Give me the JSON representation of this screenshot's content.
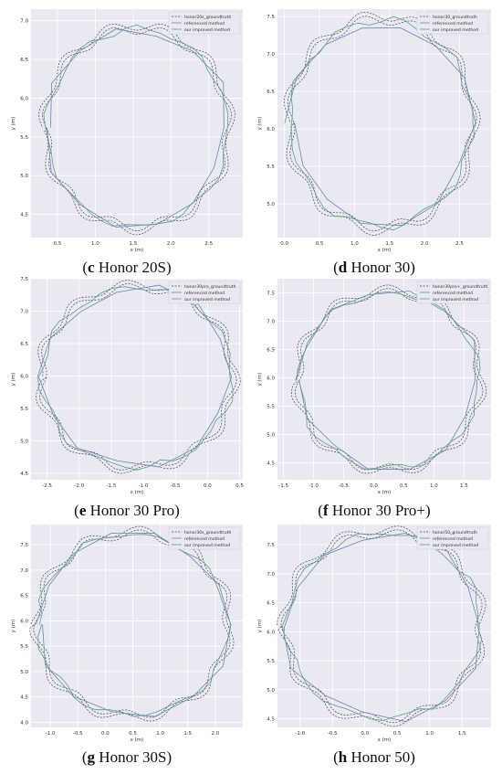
{
  "legend_labels": [
    "referenced method",
    "our improved method"
  ],
  "colors": {
    "groundtruth": "#444a55",
    "referenced": "#6f86b3",
    "improved": "#5f9e86",
    "plot_bg": "#e9e9f1",
    "grid": "#ffffff"
  },
  "chart_data": [
    {
      "type": "line",
      "caption_letter": "c",
      "caption_text": " Honor 20S",
      "xlabel": "x (m)",
      "ylabel": "y (m)",
      "xticks": [
        "0.5",
        "1.0",
        "1.5",
        "2.0",
        "2.5"
      ],
      "yticks": [
        "4.5",
        "5.0",
        "5.5",
        "6.0",
        "6.5",
        "7.0"
      ],
      "xlim": [
        0.15,
        2.95
      ],
      "ylim": [
        4.2,
        7.15
      ],
      "center": [
        1.55,
        5.62
      ],
      "radius": [
        1.2,
        1.27
      ],
      "series": [
        {
          "name": "honor20s_groundtruth"
        },
        {
          "name": "referenced method"
        },
        {
          "name": "our improved method"
        }
      ],
      "legend_position": "top-right"
    },
    {
      "type": "line",
      "caption_letter": "d",
      "caption_text": " Honor 30",
      "xlabel": "x (m)",
      "ylabel": "y (m)",
      "xticks": [
        "0.0",
        "0.5",
        "1.0",
        "1.5",
        "2.0",
        "2.5"
      ],
      "yticks": [
        "5.0",
        "5.5",
        "6.0",
        "6.5",
        "7.0",
        "7.5"
      ],
      "xlim": [
        -0.1,
        2.95
      ],
      "ylim": [
        4.55,
        7.6
      ],
      "center": [
        1.38,
        6.08
      ],
      "radius": [
        1.3,
        1.38
      ],
      "series": [
        {
          "name": "honor30_groundtruth"
        },
        {
          "name": "referenced method"
        },
        {
          "name": "our improved method"
        }
      ],
      "legend_position": "top-right"
    },
    {
      "type": "line",
      "caption_letter": "e",
      "caption_text": " Honor 30 Pro",
      "xlabel": "x (m)",
      "ylabel": "y (m)",
      "xticks": [
        "-2.5",
        "-2.0",
        "-1.5",
        "-1.0",
        "-0.5",
        "0.0",
        "0.5"
      ],
      "yticks": [
        "4.5",
        "5.0",
        "5.5",
        "6.0",
        "6.5",
        "7.0",
        "7.5"
      ],
      "xlim": [
        -2.75,
        0.55
      ],
      "ylim": [
        4.4,
        7.5
      ],
      "center": [
        -1.1,
        5.98
      ],
      "radius": [
        1.48,
        1.38
      ],
      "series": [
        {
          "name": "honor30pro_groundtruth"
        },
        {
          "name": "referenced method"
        },
        {
          "name": "our improved method"
        }
      ],
      "legend_position": "top-right"
    },
    {
      "type": "line",
      "caption_letter": "f",
      "caption_text": " Honor 30 Pro+",
      "xlabel": "x (m)",
      "ylabel": "y (m)",
      "xticks": [
        "-1.5",
        "-1.0",
        "-0.5",
        "0.0",
        "0.5",
        "1.0",
        "1.5"
      ],
      "yticks": [
        "4.5",
        "5.0",
        "5.5",
        "6.0",
        "6.5",
        "7.0",
        "7.5"
      ],
      "xlim": [
        -1.6,
        1.95
      ],
      "ylim": [
        4.2,
        7.75
      ],
      "center": [
        0.25,
        5.95
      ],
      "radius": [
        1.5,
        1.55
      ],
      "series": [
        {
          "name": "honor30pro+_groundtruth"
        },
        {
          "name": "referenced method"
        },
        {
          "name": "our improved method"
        }
      ],
      "legend_position": "top-right"
    },
    {
      "type": "line",
      "caption_letter": "g",
      "caption_text": " Honor 30S",
      "xlabel": "x (m)",
      "ylabel": "y (m)",
      "xticks": [
        "-1.0",
        "-0.5",
        "0.0",
        "0.5",
        "1.0",
        "1.5",
        "2.0"
      ],
      "yticks": [
        "4.0",
        "4.5",
        "5.0",
        "5.5",
        "6.0",
        "6.5",
        "7.0",
        "7.5"
      ],
      "xlim": [
        -1.35,
        2.5
      ],
      "ylim": [
        3.9,
        7.9
      ],
      "center": [
        0.5,
        5.93
      ],
      "radius": [
        1.72,
        1.78
      ],
      "series": [
        {
          "name": "honor30s_groundtruth"
        },
        {
          "name": "referenced method"
        },
        {
          "name": "our improved method"
        }
      ],
      "legend_position": "top-right"
    },
    {
      "type": "line",
      "caption_letter": "h",
      "caption_text": " Honor 50",
      "xlabel": "x (m)",
      "ylabel": "y (m)",
      "xticks": [
        "-1.0",
        "-0.5",
        "0.0",
        "0.5",
        "1.0",
        "1.5"
      ],
      "yticks": [
        "4.5",
        "5.0",
        "5.5",
        "6.0",
        "6.5",
        "7.0",
        "7.5"
      ],
      "xlim": [
        -1.35,
        1.95
      ],
      "ylim": [
        4.35,
        7.85
      ],
      "center": [
        0.28,
        6.1
      ],
      "radius": [
        1.5,
        1.6
      ],
      "series": [
        {
          "name": "honor50_groundtruth"
        },
        {
          "name": "referenced method"
        },
        {
          "name": "our improved method"
        }
      ],
      "legend_position": "top-right"
    }
  ]
}
